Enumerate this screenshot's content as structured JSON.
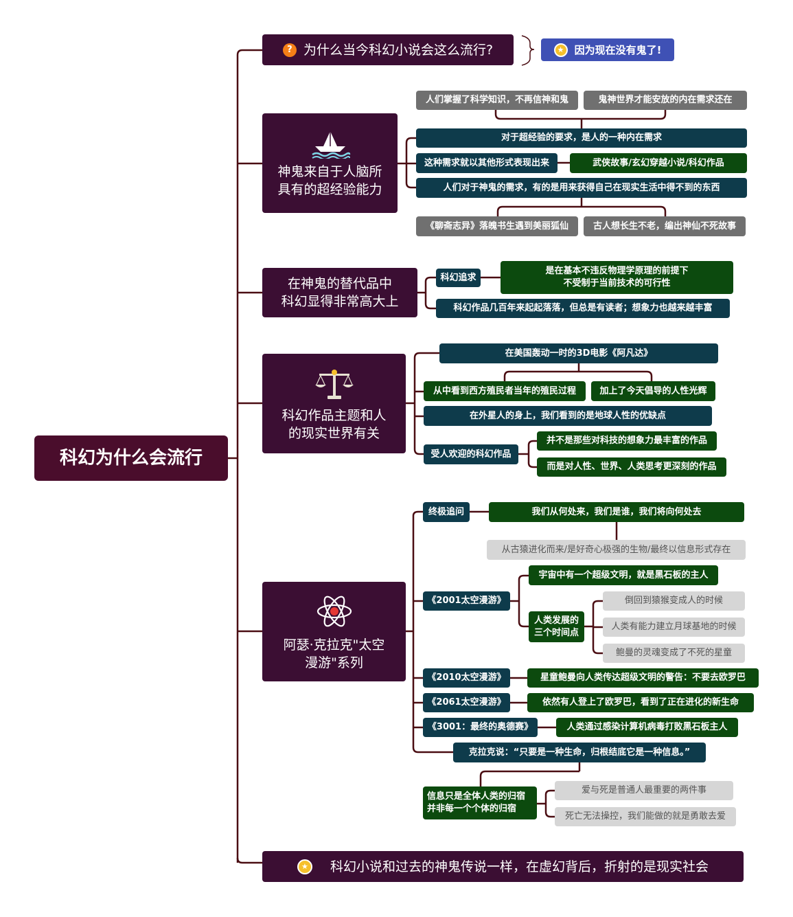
{
  "root": "科幻为什么会流行",
  "q1": {
    "text": "为什么当今科幻小说会这么流行?",
    "answer": "因为现在没有鬼了!"
  },
  "t1": {
    "title_l1": "神鬼来自于人脑所",
    "title_l2": "具有的超经验能力",
    "gray_a": "人们掌握了科学知识，不再信神和鬼",
    "gray_b": "鬼神世界才能安放的内在需求还在",
    "need": "对于超经验的要求，是人的一种内在需求",
    "form": "这种需求就以其他形式表现出来",
    "form_ex": "武侠故事/玄幻穿越小说/科幻作品",
    "obtain": "人们对于神鬼的需求，有的是用来获得自己在现实生活中得不到的东西",
    "gray_c": "《聊斋志异》落魄书生遇到美丽狐仙",
    "gray_d": "古人想长生不老，编出神仙不死故事"
  },
  "t2": {
    "title_l1": "在神鬼的替代品中",
    "title_l2": "科幻显得非常高大上",
    "pursuit": "科幻追求",
    "pursuit_l1": "是在基本不违反物理学原理的前提下",
    "pursuit_l2": "不受制于当前技术的可行性",
    "readers": "科幻作品几百年来起起落落，但总是有读者；想象力也越来越丰富"
  },
  "t3": {
    "title_l1": "科幻作品主题和人",
    "title_l2": "的现实世界有关",
    "avatar": "在美国轰动一时的3D电影《阿凡达》",
    "colonial": "从中看到西方殖民者当年的殖民过程",
    "humanity": "加上了今天倡导的人性光辉",
    "alien": "在外星人的身上，我们看到的是地球人性的优缺点",
    "popular": "受人欢迎的科幻作品",
    "not_tech": "并不是那些对科技的想象力最丰富的作品",
    "but_deep": "而是对人性、世界、人类思考更深刻的作品"
  },
  "t4": {
    "title_l1": "阿瑟·克拉克\"太空",
    "title_l2": "漫游\"系列",
    "ultimate": "终极追问",
    "questions": "我们从何处来，我们是谁，我们将向何处去",
    "answers": "从古猿进化而来/是好奇心极强的生物/最终以信息形式存在",
    "b2001": "《2001太空漫游》",
    "monolith": "宇宙中有一个超级文明，就是黑石板的主人",
    "three_l1": "人类发展的",
    "three_l2": "三个时间点",
    "p1": "倒回到猿猴变成人的时候",
    "p2": "人类有能力建立月球基地的时候",
    "p3": "鲍曼的灵魂变成了不死的星童",
    "b2010": "《2010太空漫游》",
    "b2010_t": "星童鲍曼向人类传达超级文明的警告：不要去欧罗巴",
    "b2061": "《2061太空漫游》",
    "b2061_t": "依然有人登上了欧罗巴，看到了正在进化的新生命",
    "b3001": "《3001：最终的奥德赛》",
    "b3001_t": "人类通过感染计算机病毒打败黑石板主人",
    "quote": "克拉克说：“只要是一种生命，归根结底它是一种信息。”",
    "info_l1": "信息只是全体人类的归宿",
    "info_l2": "并非每一个个体的归宿",
    "love": "爱与死是普通人最重要的两件事",
    "brave": "死亡无法操控，我们能做的就是勇敢去爱"
  },
  "conclusion": "科幻小说和过去的神鬼传说一样，在虚幻背后，折射的是现实社会",
  "colors": {
    "line": "#4a0d12",
    "topic": "#3b0e33",
    "teal": "#0e3b4b",
    "green": "#0c4a0e",
    "gray": "#707070",
    "callout": "#3f51b5"
  }
}
